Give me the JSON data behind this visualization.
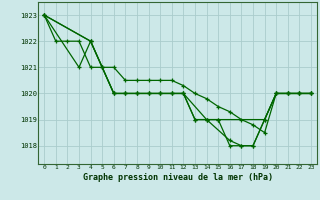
{
  "title": "Graphe pression niveau de la mer (hPa)",
  "bg_color": "#cce8e8",
  "grid_color": "#aacccc",
  "line_color": "#006600",
  "xlim": [
    -0.5,
    23.5
  ],
  "ylim": [
    1017.3,
    1023.5
  ],
  "yticks": [
    1018,
    1019,
    1020,
    1021,
    1022,
    1023
  ],
  "xticks": [
    0,
    1,
    2,
    3,
    4,
    5,
    6,
    7,
    8,
    9,
    10,
    11,
    12,
    13,
    14,
    15,
    16,
    17,
    18,
    19,
    20,
    21,
    22,
    23
  ],
  "series": [
    {
      "x": [
        0,
        1,
        2,
        3,
        4,
        5,
        6,
        7,
        8,
        9,
        10,
        11,
        12,
        13,
        14,
        15,
        19,
        20,
        21,
        22,
        23
      ],
      "y": [
        1023,
        1022,
        1022,
        1022,
        1021,
        1021,
        1020,
        1020,
        1020,
        1020,
        1020,
        1020,
        1020,
        1019,
        1019,
        1019,
        1019,
        1020,
        1020,
        1020,
        1020
      ]
    },
    {
      "x": [
        0,
        4,
        5,
        6,
        7,
        8,
        9,
        10,
        11,
        12,
        13,
        14,
        15,
        16,
        17,
        18,
        19,
        20,
        21,
        22,
        23
      ],
      "y": [
        1023,
        1022,
        1021,
        1021,
        1020.5,
        1020.5,
        1020.5,
        1020.5,
        1020.5,
        1020.3,
        1020,
        1019.8,
        1019.5,
        1019.3,
        1019,
        1018.8,
        1018.5,
        1020,
        1020,
        1020,
        1020
      ]
    },
    {
      "x": [
        0,
        3,
        4,
        5,
        6,
        7,
        8,
        9,
        10,
        11,
        12,
        13,
        14,
        15,
        16,
        17,
        18,
        19,
        20,
        21,
        22,
        23
      ],
      "y": [
        1023,
        1021,
        1022,
        1021,
        1020,
        1020,
        1020,
        1020,
        1020,
        1020,
        1020,
        1019,
        1019,
        1019,
        1018,
        1018,
        1018,
        1019,
        1020,
        1020,
        1020,
        1020
      ]
    },
    {
      "x": [
        0,
        4,
        6,
        7,
        8,
        9,
        10,
        11,
        12,
        14,
        16,
        17,
        18,
        20,
        21,
        22,
        23
      ],
      "y": [
        1023,
        1022,
        1020,
        1020,
        1020,
        1020,
        1020,
        1020,
        1020,
        1019,
        1018.2,
        1018,
        1018,
        1020,
        1020,
        1020,
        1020
      ]
    }
  ]
}
